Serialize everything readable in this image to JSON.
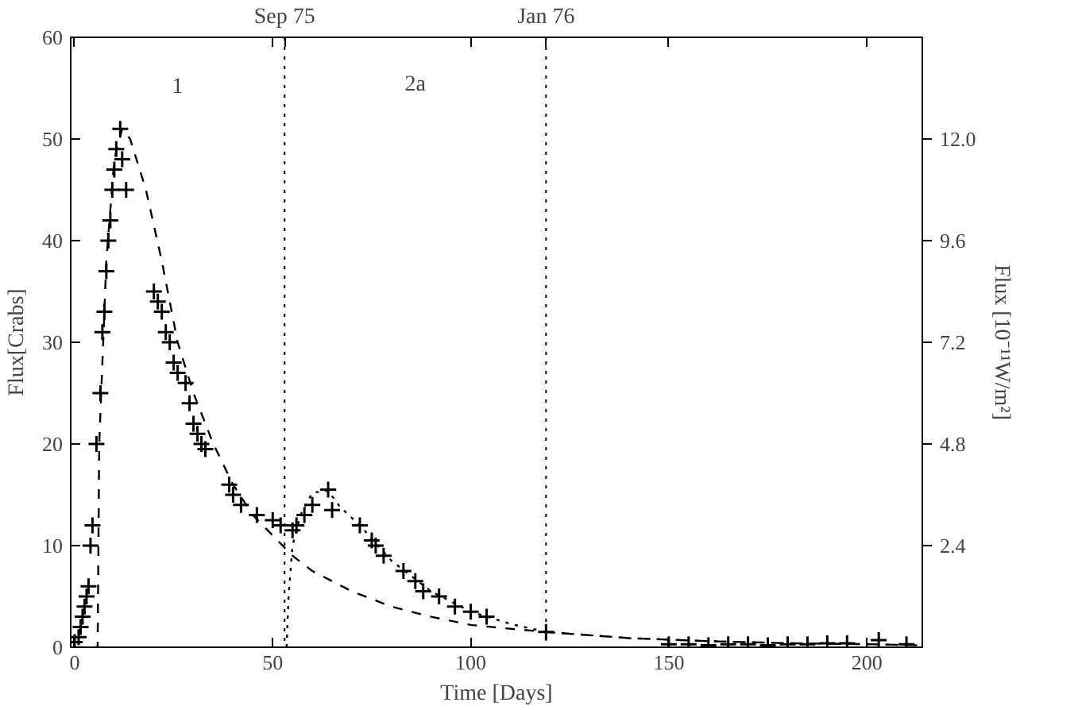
{
  "chart_data": {
    "type": "scatter",
    "xlabel": "Time [Days]",
    "ylabel": "Flux[Crabs]",
    "y2label": "Flux [10⁻¹¹W/m²]",
    "xlim": [
      -1,
      214
    ],
    "xticks": [
      0,
      50,
      100,
      150,
      200
    ],
    "ylim": [
      0,
      60
    ],
    "yticks": [
      0,
      10,
      20,
      30,
      40,
      50,
      60
    ],
    "y2lim": [
      0,
      14.4
    ],
    "y2ticks": [
      2.4,
      4.8,
      7.2,
      9.6,
      {
        "value": 12,
        "label": "12.0"
      }
    ],
    "grid": false,
    "ref_lines": [
      {
        "axis": "x",
        "value": 53,
        "label": "Sep 75",
        "line_style": "dotted",
        "color": "#000000"
      },
      {
        "axis": "x",
        "value": 119,
        "label": "Jan 76",
        "line_style": "dotted",
        "color": "#000000"
      }
    ],
    "annotations": [
      "1",
      "2a"
    ],
    "series": [
      {
        "color": "#000000",
        "marker": "cross",
        "x": [
          0,
          1,
          1.5,
          2,
          2.5,
          3,
          3.5,
          4,
          4.5,
          5.5,
          6.5,
          7,
          7.5,
          8,
          8.5,
          9,
          9.5,
          10,
          10.5,
          11.5,
          12,
          13,
          20,
          21,
          22,
          23,
          24,
          25,
          26,
          28,
          29,
          30,
          31,
          32,
          33,
          39,
          40,
          42,
          46,
          50,
          52,
          55,
          56,
          58,
          60,
          64,
          65,
          72,
          75,
          76,
          78,
          83,
          86,
          88,
          92,
          96,
          100,
          104,
          119,
          150,
          155,
          160,
          165,
          170,
          175,
          180,
          185,
          190,
          195,
          203,
          210
        ],
        "values": [
          0.5,
          1,
          2,
          3,
          4,
          5,
          6,
          10,
          12,
          20,
          25,
          31,
          33,
          37,
          40,
          42,
          45,
          47,
          49,
          51,
          48,
          45,
          35,
          34,
          33,
          31,
          30,
          28,
          27,
          26,
          24,
          22,
          21,
          20,
          19.5,
          16,
          15,
          14,
          13,
          12.5,
          12,
          11.5,
          12,
          13,
          14,
          15.5,
          13.5,
          12,
          10.5,
          10,
          9,
          7.5,
          6.5,
          5.5,
          5,
          4,
          3.5,
          3,
          1.5,
          0.3,
          0.3,
          0.2,
          0.3,
          0.3,
          0.2,
          0.3,
          0.3,
          0.4,
          0.4,
          0.7,
          0.3
        ]
      },
      {
        "type": "line",
        "color": "#000000",
        "line_style": "dashed",
        "x": [
          0,
          5.8,
          6,
          6.2,
          8,
          10,
          12,
          14,
          18,
          22,
          26,
          30,
          35,
          40,
          45,
          50,
          55,
          60,
          70,
          80,
          90,
          100,
          105,
          119,
          140,
          160,
          180,
          200,
          213
        ],
        "values": [
          0,
          0,
          10,
          20,
          38,
          48,
          51,
          50,
          45,
          38,
          30,
          25,
          20,
          16,
          13,
          11,
          9,
          7.5,
          5.5,
          4,
          3,
          2.2,
          2,
          1.5,
          0.9,
          0.6,
          0.4,
          0.3,
          0.2
        ]
      },
      {
        "type": "line",
        "color": "#000000",
        "line_style": "dotted",
        "x": [
          53.5,
          54,
          55,
          57,
          60,
          64,
          67,
          72,
          80,
          90,
          100,
          110,
          119,
          140,
          160,
          180,
          200,
          213
        ],
        "values": [
          0,
          5,
          10,
          13,
          15.2,
          15.4,
          13.8,
          12,
          8.5,
          5.5,
          3.5,
          2.3,
          1.5,
          0.9,
          0.6,
          0.4,
          0.3,
          0.2
        ]
      }
    ]
  }
}
